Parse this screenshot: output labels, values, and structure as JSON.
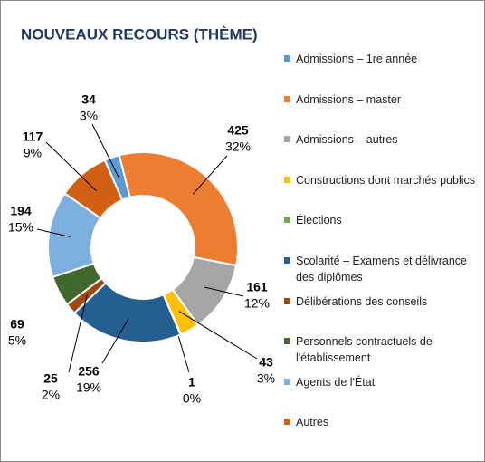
{
  "chart_data": {
    "type": "donut",
    "title": "NOUVEAUX RECOURS (THÈME)",
    "categories": [
      "Admissions – 1re année",
      "Admissions – master",
      "Admissions – autres",
      "Constructions dont marchés publics",
      "Élections",
      "Scolarité – Examens et délivrance des diplômes",
      "Délibérations des conseils",
      "Personnels contractuels de l'établissement",
      "Agents de l'État",
      "Autres"
    ],
    "values": [
      34,
      425,
      161,
      43,
      1,
      256,
      25,
      69,
      194,
      117
    ],
    "percent_labels": [
      "3%",
      "32%",
      "12%",
      "3%",
      "0%",
      "19%",
      "2%",
      "5%",
      "15%",
      "9%"
    ],
    "colors": [
      "#5b9bd5",
      "#ed7d31",
      "#a5a5a5",
      "#ffc000",
      "#70ad47",
      "#255e91",
      "#9e480e",
      "#43682b",
      "#7cafdd",
      "#d26012"
    ],
    "legend": "right"
  }
}
